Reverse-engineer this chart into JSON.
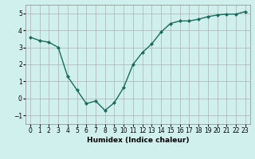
{
  "x": [
    0,
    1,
    2,
    3,
    4,
    5,
    6,
    7,
    8,
    9,
    10,
    11,
    12,
    13,
    14,
    15,
    16,
    17,
    18,
    19,
    20,
    21,
    22,
    23
  ],
  "y": [
    3.6,
    3.4,
    3.3,
    3.0,
    1.3,
    0.5,
    -0.3,
    -0.15,
    -0.7,
    -0.25,
    0.65,
    2.0,
    2.7,
    3.2,
    3.9,
    4.4,
    4.55,
    4.55,
    4.65,
    4.8,
    4.9,
    4.95,
    4.95,
    5.1
  ],
  "xlabel": "Humidex (Indice chaleur)",
  "line_color": "#1a6b5e",
  "marker": "D",
  "marker_size": 2.0,
  "bg_color": "#cff0ec",
  "grid_color_major": "#b0b0b0",
  "grid_color_minor": "#d8d8d8",
  "ylim": [
    -1.5,
    5.5
  ],
  "xlim": [
    -0.5,
    23.5
  ],
  "yticks": [
    -1,
    0,
    1,
    2,
    3,
    4,
    5
  ],
  "xticks": [
    0,
    1,
    2,
    3,
    4,
    5,
    6,
    7,
    8,
    9,
    10,
    11,
    12,
    13,
    14,
    15,
    16,
    17,
    18,
    19,
    20,
    21,
    22,
    23
  ],
  "xtick_labels": [
    "0",
    "1",
    "2",
    "3",
    "4",
    "5",
    "6",
    "7",
    "8",
    "9",
    "10",
    "11",
    "12",
    "13",
    "14",
    "15",
    "16",
    "17",
    "18",
    "19",
    "20",
    "21",
    "22",
    "23"
  ],
  "linewidth": 1.0,
  "xlabel_fontsize": 6.5,
  "tick_fontsize": 5.5
}
